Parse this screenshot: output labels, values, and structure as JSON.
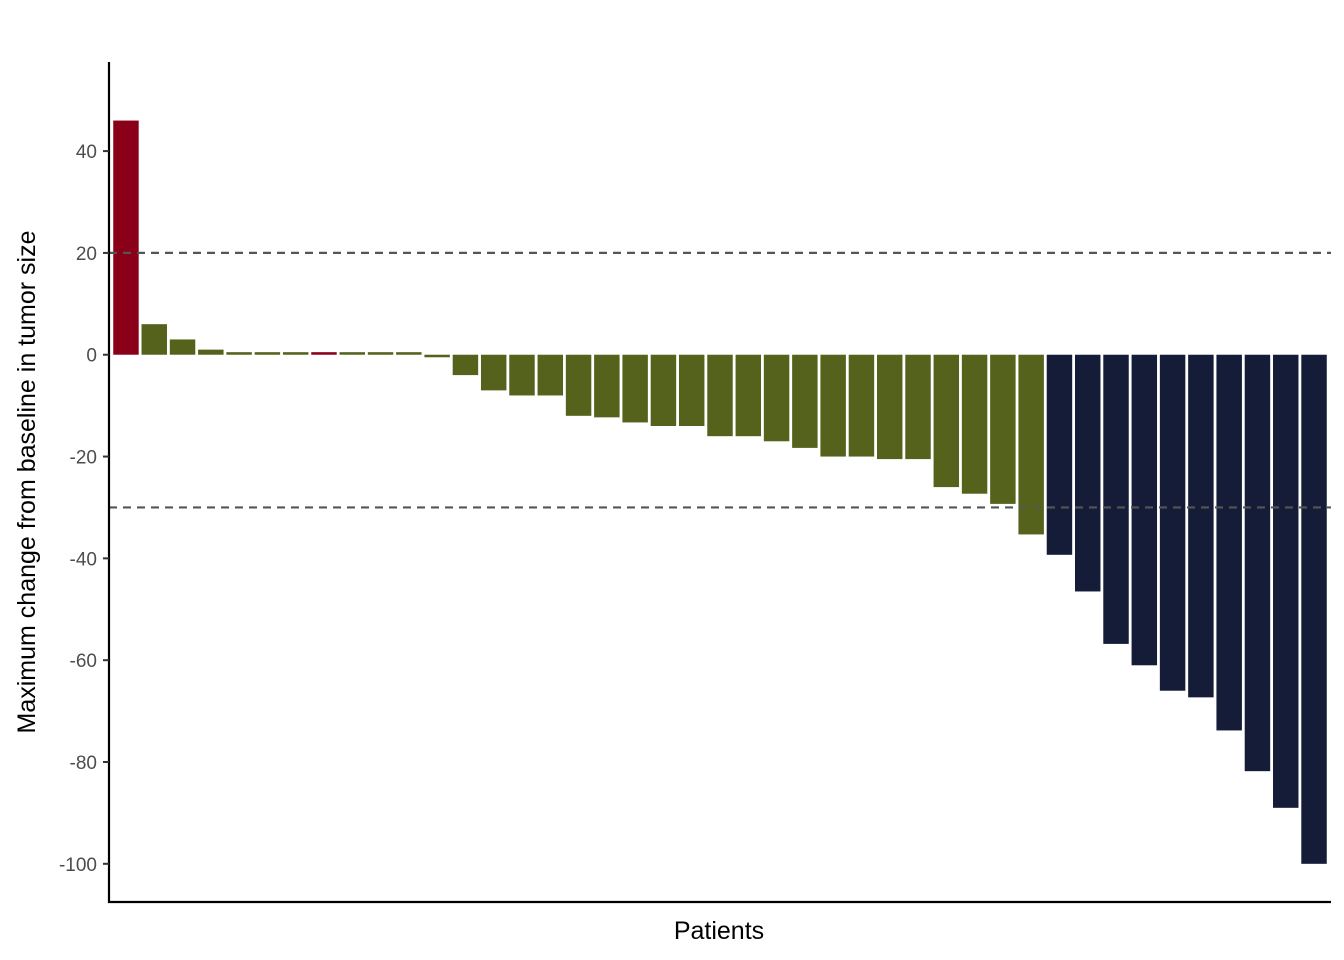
{
  "chart_data": {
    "type": "bar",
    "title": "",
    "xlabel": "Patients",
    "ylabel": "Maximum change from baseline in tumor size",
    "ylim": [
      -107.5,
      57.5
    ],
    "yticks": [
      -100,
      -80,
      -60,
      -40,
      -20,
      0,
      20,
      40
    ],
    "ytick_labels": [
      "-100",
      "-80",
      "-60",
      "-40",
      "-20",
      "0",
      "20",
      "40"
    ],
    "reference_lines": [
      20,
      -30
    ],
    "grid": false,
    "legend": "none",
    "colors": {
      "red": "#8b0019",
      "olive": "#55621b",
      "navy": "#141c38",
      "reference_line": "#555555",
      "axis": "#000000"
    },
    "values": [
      46,
      6,
      3,
      1,
      0.5,
      0.5,
      0.5,
      0.5,
      0.5,
      0.5,
      0.5,
      -0.5,
      -4,
      -7,
      -8,
      -8,
      -12,
      -12.3,
      -13.3,
      -14,
      -14,
      -16,
      -16,
      -17,
      -18.3,
      -20,
      -20,
      -20.5,
      -20.5,
      -26,
      -27.3,
      -29.3,
      -35.3,
      -39.3,
      -46.5,
      -56.8,
      -61,
      -66,
      -67.3,
      -73.8,
      -81.8,
      -89,
      -100
    ],
    "bar_colors": [
      "red",
      "olive",
      "olive",
      "olive",
      "olive",
      "olive",
      "olive",
      "red",
      "olive",
      "olive",
      "olive",
      "olive",
      "olive",
      "olive",
      "olive",
      "olive",
      "olive",
      "olive",
      "olive",
      "olive",
      "olive",
      "olive",
      "olive",
      "olive",
      "olive",
      "olive",
      "olive",
      "olive",
      "olive",
      "olive",
      "olive",
      "olive",
      "olive",
      "navy",
      "navy",
      "navy",
      "navy",
      "navy",
      "navy",
      "navy",
      "navy",
      "navy",
      "navy"
    ]
  }
}
